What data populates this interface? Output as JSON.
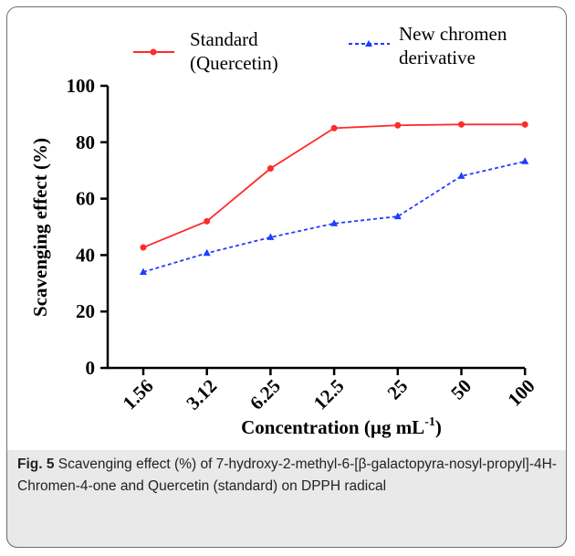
{
  "chart_data": {
    "type": "line",
    "categories": [
      "1.56",
      "3.12",
      "6.25",
      "12.5",
      "25",
      "50",
      "100"
    ],
    "xlabel_main": "Concentration (µg mL",
    "xlabel_sup": "-1",
    "xlabel_end": ")",
    "ylabel": "Scavenging effect (%)",
    "ylim": [
      0,
      100
    ],
    "yticks": [
      "0",
      "20",
      "40",
      "60",
      "80",
      "100"
    ],
    "grid": false,
    "legend_position": "top",
    "series": [
      {
        "name_line1": "Standard",
        "name_line2": "(Quercetin)",
        "values": [
          42.7,
          52.0,
          70.7,
          85.0,
          86.0,
          86.3,
          86.3
        ],
        "color": "#ff2a2a",
        "line_style": "solid",
        "marker": "circle"
      },
      {
        "name_line1": "New chromen",
        "name_line2": "derivative",
        "values": [
          34.0,
          40.7,
          46.3,
          51.2,
          53.7,
          68.0,
          73.2
        ],
        "color": "#1f3cff",
        "line_style": "dashed",
        "marker": "triangle"
      }
    ]
  },
  "caption": {
    "fig_label": "Fig. 5",
    "text": " Scavenging effect (%) of 7-hydroxy-2-methyl-6-[β-galactopyra-nosyl-propyl]-4H- Chromen-4-one and Quercetin (standard) on DPPH radical"
  }
}
